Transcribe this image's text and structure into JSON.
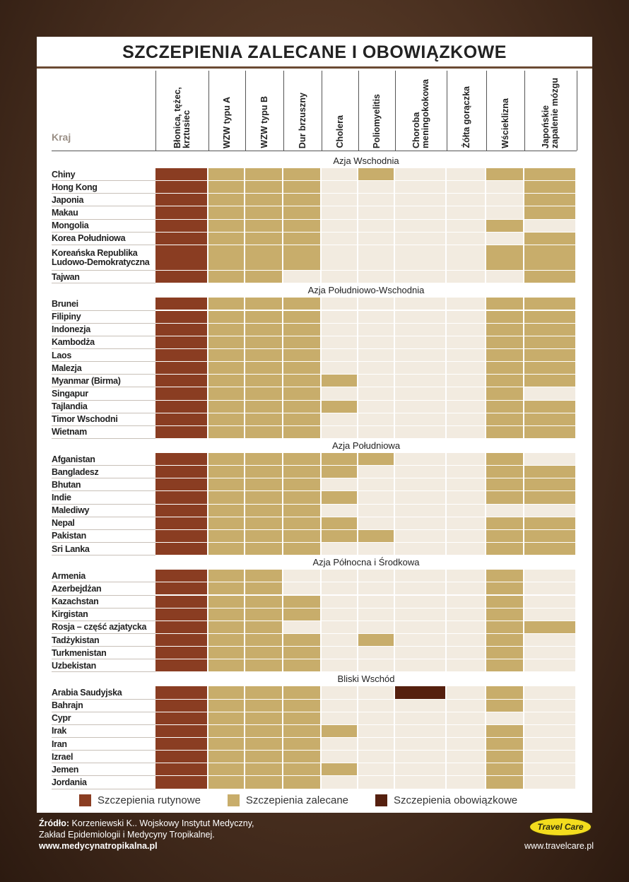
{
  "title": "SZCZEPIENIA ZALECANE I OBOWIĄZKOWE",
  "header": {
    "country_label": "Kraj",
    "columns": [
      "Błonica, tężec, krztusiec",
      "WZW typu A",
      "WZW typu B",
      "Dur brzuszny",
      "Cholera",
      "Poliomyelitis",
      "Choroba meningokokowa",
      "Żółta gorączka",
      "Wścieklizna",
      "Japońskie zapalenie mózgu"
    ]
  },
  "colors": {
    "R": "#8a3d22",
    "Z": "#c8ad6b",
    "O": "#55200f",
    "-": "#f2ebe0"
  },
  "sections": [
    {
      "name": "Azja Wschodnia",
      "rows": [
        {
          "country": "Chiny",
          "cells": [
            "R",
            "Z",
            "Z",
            "Z",
            "-",
            "Z",
            "-",
            "-",
            "Z",
            "Z"
          ]
        },
        {
          "country": "Hong Kong",
          "cells": [
            "R",
            "Z",
            "Z",
            "Z",
            "-",
            "-",
            "-",
            "-",
            "-",
            "Z"
          ]
        },
        {
          "country": "Japonia",
          "cells": [
            "R",
            "Z",
            "Z",
            "Z",
            "-",
            "-",
            "-",
            "-",
            "-",
            "Z"
          ]
        },
        {
          "country": "Makau",
          "cells": [
            "R",
            "Z",
            "Z",
            "Z",
            "-",
            "-",
            "-",
            "-",
            "-",
            "Z"
          ]
        },
        {
          "country": "Mongolia",
          "cells": [
            "R",
            "Z",
            "Z",
            "Z",
            "-",
            "-",
            "-",
            "-",
            "Z",
            "-"
          ]
        },
        {
          "country": "Korea Południowa",
          "cells": [
            "R",
            "Z",
            "Z",
            "Z",
            "-",
            "-",
            "-",
            "-",
            "-",
            "Z"
          ]
        },
        {
          "country": "Koreańska Republika Ludowo-Demokratyczna",
          "cells": [
            "R",
            "Z",
            "Z",
            "Z",
            "-",
            "-",
            "-",
            "-",
            "Z",
            "Z"
          ]
        },
        {
          "country": "Tajwan",
          "cells": [
            "R",
            "Z",
            "Z",
            "-",
            "-",
            "-",
            "-",
            "-",
            "-",
            "Z"
          ]
        }
      ]
    },
    {
      "name": "Azja Południowo-Wschodnia",
      "rows": [
        {
          "country": "Brunei",
          "cells": [
            "R",
            "Z",
            "Z",
            "Z",
            "-",
            "-",
            "-",
            "-",
            "Z",
            "Z"
          ]
        },
        {
          "country": "Filipiny",
          "cells": [
            "R",
            "Z",
            "Z",
            "Z",
            "-",
            "-",
            "-",
            "-",
            "Z",
            "Z"
          ]
        },
        {
          "country": "Indonezja",
          "cells": [
            "R",
            "Z",
            "Z",
            "Z",
            "-",
            "-",
            "-",
            "-",
            "Z",
            "Z"
          ]
        },
        {
          "country": "Kambodża",
          "cells": [
            "R",
            "Z",
            "Z",
            "Z",
            "-",
            "-",
            "-",
            "-",
            "Z",
            "Z"
          ]
        },
        {
          "country": "Laos",
          "cells": [
            "R",
            "Z",
            "Z",
            "Z",
            "-",
            "-",
            "-",
            "-",
            "Z",
            "Z"
          ]
        },
        {
          "country": "Malezja",
          "cells": [
            "R",
            "Z",
            "Z",
            "Z",
            "-",
            "-",
            "-",
            "-",
            "Z",
            "Z"
          ]
        },
        {
          "country": "Myanmar (Birma)",
          "cells": [
            "R",
            "Z",
            "Z",
            "Z",
            "Z",
            "-",
            "-",
            "-",
            "Z",
            "Z"
          ]
        },
        {
          "country": "Singapur",
          "cells": [
            "R",
            "Z",
            "Z",
            "Z",
            "-",
            "-",
            "-",
            "-",
            "Z",
            "-"
          ]
        },
        {
          "country": "Tajlandia",
          "cells": [
            "R",
            "Z",
            "Z",
            "Z",
            "Z",
            "-",
            "-",
            "-",
            "Z",
            "Z"
          ]
        },
        {
          "country": "Timor Wschodni",
          "cells": [
            "R",
            "Z",
            "Z",
            "Z",
            "-",
            "-",
            "-",
            "-",
            "Z",
            "Z"
          ]
        },
        {
          "country": "Wietnam",
          "cells": [
            "R",
            "Z",
            "Z",
            "Z",
            "-",
            "-",
            "-",
            "-",
            "Z",
            "Z"
          ]
        }
      ]
    },
    {
      "name": "Azja Południowa",
      "rows": [
        {
          "country": "Afganistan",
          "cells": [
            "R",
            "Z",
            "Z",
            "Z",
            "Z",
            "Z",
            "-",
            "-",
            "Z",
            "-"
          ]
        },
        {
          "country": "Bangladesz",
          "cells": [
            "R",
            "Z",
            "Z",
            "Z",
            "Z",
            "-",
            "-",
            "-",
            "Z",
            "Z"
          ]
        },
        {
          "country": "Bhutan",
          "cells": [
            "R",
            "Z",
            "Z",
            "Z",
            "-",
            "-",
            "-",
            "-",
            "Z",
            "Z"
          ]
        },
        {
          "country": "Indie",
          "cells": [
            "R",
            "Z",
            "Z",
            "Z",
            "Z",
            "-",
            "-",
            "-",
            "Z",
            "Z"
          ]
        },
        {
          "country": "Malediwy",
          "cells": [
            "R",
            "Z",
            "Z",
            "Z",
            "-",
            "-",
            "-",
            "-",
            "-",
            "-"
          ]
        },
        {
          "country": "Nepal",
          "cells": [
            "R",
            "Z",
            "Z",
            "Z",
            "Z",
            "-",
            "-",
            "-",
            "Z",
            "Z"
          ]
        },
        {
          "country": "Pakistan",
          "cells": [
            "R",
            "Z",
            "Z",
            "Z",
            "Z",
            "Z",
            "-",
            "-",
            "Z",
            "Z"
          ]
        },
        {
          "country": "Sri Lanka",
          "cells": [
            "R",
            "Z",
            "Z",
            "Z",
            "-",
            "-",
            "-",
            "-",
            "Z",
            "Z"
          ]
        }
      ]
    },
    {
      "name": "Azja Północna i Środkowa",
      "rows": [
        {
          "country": "Armenia",
          "cells": [
            "R",
            "Z",
            "Z",
            "-",
            "-",
            "-",
            "-",
            "-",
            "Z",
            "-"
          ]
        },
        {
          "country": "Azerbejdżan",
          "cells": [
            "R",
            "Z",
            "Z",
            "-",
            "-",
            "-",
            "-",
            "-",
            "Z",
            "-"
          ]
        },
        {
          "country": "Kazachstan",
          "cells": [
            "R",
            "Z",
            "Z",
            "Z",
            "-",
            "-",
            "-",
            "-",
            "Z",
            "-"
          ]
        },
        {
          "country": "Kirgistan",
          "cells": [
            "R",
            "Z",
            "Z",
            "Z",
            "-",
            "-",
            "-",
            "-",
            "Z",
            "-"
          ]
        },
        {
          "country": "Rosja – część azjatycka",
          "cells": [
            "R",
            "Z",
            "Z",
            "-",
            "-",
            "-",
            "-",
            "-",
            "Z",
            "Z"
          ]
        },
        {
          "country": "Tadżykistan",
          "cells": [
            "R",
            "Z",
            "Z",
            "Z",
            "-",
            "Z",
            "-",
            "-",
            "Z",
            "-"
          ]
        },
        {
          "country": "Turkmenistan",
          "cells": [
            "R",
            "Z",
            "Z",
            "Z",
            "-",
            "-",
            "-",
            "-",
            "Z",
            "-"
          ]
        },
        {
          "country": "Uzbekistan",
          "cells": [
            "R",
            "Z",
            "Z",
            "Z",
            "-",
            "-",
            "-",
            "-",
            "Z",
            "-"
          ]
        }
      ]
    },
    {
      "name": "Bliski Wschód",
      "rows": [
        {
          "country": "Arabia Saudyjska",
          "cells": [
            "R",
            "Z",
            "Z",
            "Z",
            "-",
            "-",
            "O",
            "-",
            "Z",
            "-"
          ]
        },
        {
          "country": "Bahrajn",
          "cells": [
            "R",
            "Z",
            "Z",
            "Z",
            "-",
            "-",
            "-",
            "-",
            "Z",
            "-"
          ]
        },
        {
          "country": "Cypr",
          "cells": [
            "R",
            "Z",
            "Z",
            "Z",
            "-",
            "-",
            "-",
            "-",
            "-",
            "-"
          ]
        },
        {
          "country": "Irak",
          "cells": [
            "R",
            "Z",
            "Z",
            "Z",
            "Z",
            "-",
            "-",
            "-",
            "Z",
            "-"
          ]
        },
        {
          "country": "Iran",
          "cells": [
            "R",
            "Z",
            "Z",
            "Z",
            "-",
            "-",
            "-",
            "-",
            "Z",
            "-"
          ]
        },
        {
          "country": "Izrael",
          "cells": [
            "R",
            "Z",
            "Z",
            "Z",
            "-",
            "-",
            "-",
            "-",
            "Z",
            "-"
          ]
        },
        {
          "country": "Jemen",
          "cells": [
            "R",
            "Z",
            "Z",
            "Z",
            "Z",
            "-",
            "-",
            "-",
            "Z",
            "-"
          ]
        },
        {
          "country": "Jordania",
          "cells": [
            "R",
            "Z",
            "Z",
            "Z",
            "-",
            "-",
            "-",
            "-",
            "Z",
            "-"
          ]
        }
      ]
    }
  ],
  "legend": [
    {
      "code": "R",
      "label": "Szczepienia rutynowe"
    },
    {
      "code": "Z",
      "label": "Szczepienia zalecane"
    },
    {
      "code": "O",
      "label": "Szczepienia obowiązkowe"
    }
  ],
  "footer": {
    "source_label": "Źródło:",
    "source_text": "Korzeniewski K.. Wojskowy Instytut Medyczny,",
    "source_line2": "Zakład Epidemiologii i Medycyny Tropikalnej.",
    "url_left": "www.medycynatropikalna.pl",
    "logo": "Travel Care",
    "url_right": "www.travelcare.pl"
  }
}
